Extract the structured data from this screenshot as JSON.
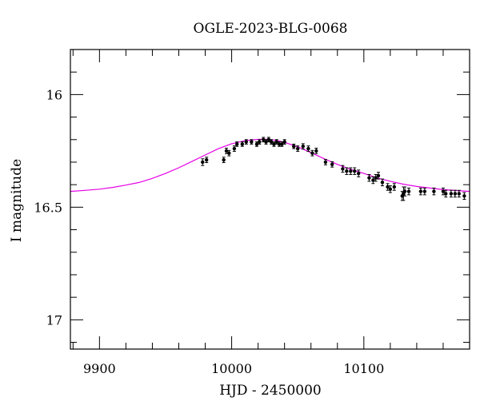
{
  "chart_data": {
    "type": "scatter",
    "title": "OGLE-2023-BLG-0068",
    "xlabel": "HJD - 2450000",
    "ylabel": "I magnitude",
    "xlim": [
      9878,
      10180
    ],
    "ylim": [
      17.13,
      15.8
    ],
    "y_inverted": true,
    "grid": false,
    "x_ticks": [
      9900,
      10000,
      10100
    ],
    "y_ticks": [
      16,
      16.5,
      17
    ],
    "tick_labels": {
      "x": [
        "9900",
        "10000",
        "10100"
      ],
      "y": [
        "16",
        "16.5",
        "17"
      ]
    },
    "colors": {
      "data": "#000000",
      "model": "#e600e6"
    },
    "series": [
      {
        "kind": "points_with_errorbars",
        "x": [
          9978,
          9981,
          9994,
          9996,
          9998,
          10002,
          10004,
          10008,
          10011,
          10015,
          10019,
          10021,
          10024,
          10026,
          10028,
          10030,
          10032,
          10034,
          10036,
          10038,
          10040,
          10047,
          10050,
          10054,
          10058,
          10061,
          10064,
          10071,
          10076,
          10084,
          10087,
          10090,
          10093,
          10096,
          10104,
          10107,
          10109,
          10111,
          10114,
          10118,
          10120,
          10123,
          10129,
          10130,
          10131,
          10134,
          10143,
          10146,
          10153,
          10160,
          10162,
          10166,
          10169,
          10172,
          10176
        ],
        "y": [
          16.3,
          16.29,
          16.29,
          16.25,
          16.26,
          16.24,
          16.22,
          16.22,
          16.21,
          16.21,
          16.22,
          16.21,
          16.2,
          16.21,
          16.2,
          16.21,
          16.22,
          16.21,
          16.22,
          16.22,
          16.21,
          16.23,
          16.24,
          16.23,
          16.24,
          16.26,
          16.25,
          16.3,
          16.31,
          16.33,
          16.34,
          16.34,
          16.34,
          16.35,
          16.37,
          16.38,
          16.37,
          16.36,
          16.39,
          16.41,
          16.42,
          16.41,
          16.45,
          16.44,
          16.43,
          16.43,
          16.43,
          16.43,
          16.43,
          16.43,
          16.44,
          16.44,
          16.44,
          16.44,
          16.45
        ],
        "err": [
          0.015,
          0.012,
          0.012,
          0.012,
          0.012,
          0.012,
          0.01,
          0.01,
          0.01,
          0.01,
          0.01,
          0.01,
          0.01,
          0.01,
          0.01,
          0.01,
          0.01,
          0.01,
          0.01,
          0.01,
          0.01,
          0.01,
          0.012,
          0.012,
          0.012,
          0.012,
          0.012,
          0.012,
          0.012,
          0.015,
          0.015,
          0.015,
          0.015,
          0.015,
          0.015,
          0.015,
          0.015,
          0.015,
          0.015,
          0.015,
          0.015,
          0.015,
          0.02,
          0.03,
          0.02,
          0.015,
          0.015,
          0.015,
          0.015,
          0.015,
          0.015,
          0.015,
          0.015,
          0.015,
          0.015
        ]
      },
      {
        "kind": "model_curve",
        "x": [
          9878,
          9890,
          9900,
          9910,
          9920,
          9930,
          9940,
          9950,
          9960,
          9970,
          9980,
          9990,
          10000,
          10010,
          10020,
          10025,
          10030,
          10035,
          10040,
          10050,
          10060,
          10070,
          10080,
          10090,
          10100,
          10110,
          10120,
          10130,
          10140,
          10150,
          10160,
          10170,
          10180
        ],
        "y": [
          16.43,
          16.425,
          16.42,
          16.412,
          16.402,
          16.39,
          16.372,
          16.35,
          16.325,
          16.297,
          16.268,
          16.24,
          16.218,
          16.205,
          16.199,
          16.198,
          16.2,
          16.205,
          16.212,
          16.232,
          16.258,
          16.285,
          16.31,
          16.332,
          16.35,
          16.37,
          16.385,
          16.398,
          16.408,
          16.415,
          16.422,
          16.426,
          16.43
        ]
      }
    ]
  }
}
